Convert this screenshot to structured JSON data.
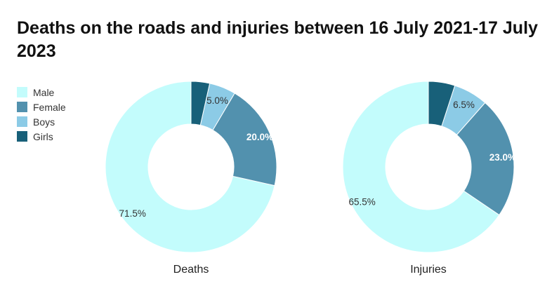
{
  "title": "Deaths on the roads and injuries between 16 July 2021-17 July 2023",
  "legend": [
    {
      "label": "Male",
      "color": "#c3fcfc"
    },
    {
      "label": "Female",
      "color": "#5291ae"
    },
    {
      "label": "Boys",
      "color": "#8ccbe6"
    },
    {
      "label": "Girls",
      "color": "#186079"
    }
  ],
  "chart_data": [
    {
      "type": "pie",
      "label": "Deaths",
      "categories": [
        "Male",
        "Female",
        "Boys",
        "Girls"
      ],
      "values": [
        71.5,
        20.0,
        5.0,
        3.5
      ],
      "labels": [
        "71.5%",
        "20.0%",
        "5.0%",
        ""
      ],
      "colors": [
        "#c3fcfc",
        "#5291ae",
        "#8ccbe6",
        "#186079"
      ]
    },
    {
      "type": "pie",
      "label": "Injuries",
      "categories": [
        "Male",
        "Female",
        "Boys",
        "Girls"
      ],
      "values": [
        65.5,
        23.0,
        6.5,
        5.0
      ],
      "labels": [
        "65.5%",
        "23.0%",
        "6.5%",
        ""
      ],
      "colors": [
        "#c3fcfc",
        "#5291ae",
        "#8ccbe6",
        "#186079"
      ]
    }
  ]
}
